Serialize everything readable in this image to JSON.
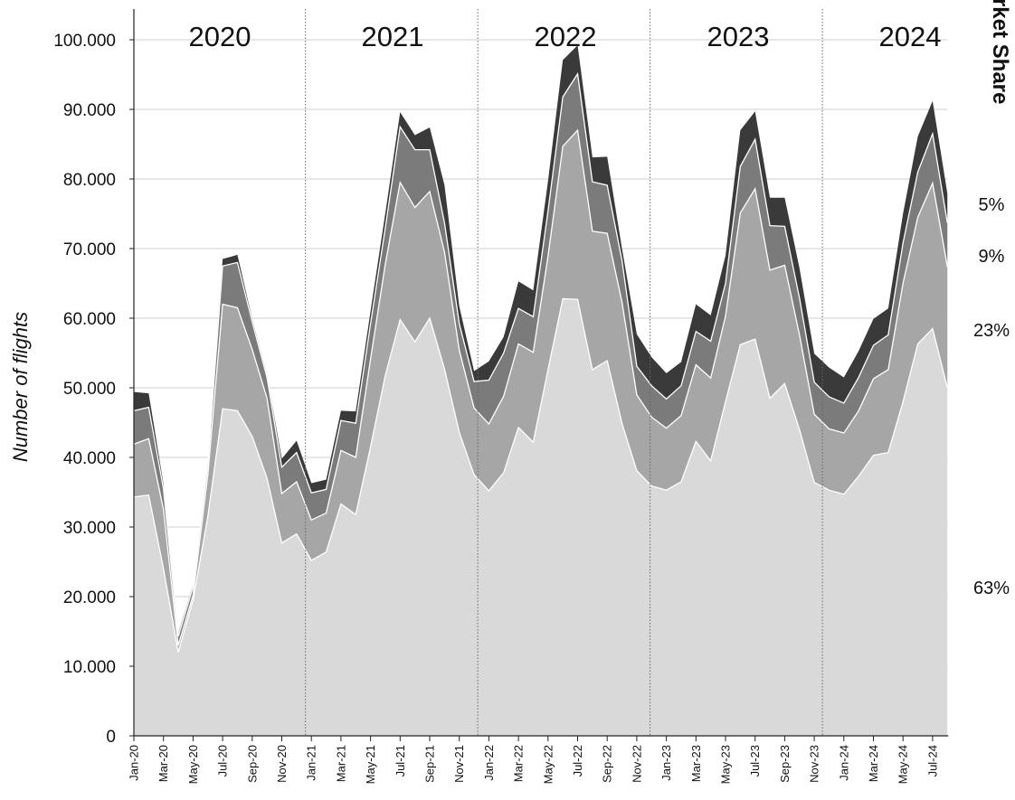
{
  "chart_data": {
    "type": "area",
    "stacked": true,
    "ylabel": "Number of flights",
    "ylim": [
      0,
      100000
    ],
    "y_ticks": [
      "0",
      "10.000",
      "20.000",
      "30.000",
      "40.000",
      "50.000",
      "60.000",
      "70.000",
      "80.000",
      "90.000",
      "100.000"
    ],
    "x": [
      "Jan-20",
      "Feb-20",
      "Mar-20",
      "Apr-20",
      "May-20",
      "Jun-20",
      "Jul-20",
      "Aug-20",
      "Sep-20",
      "Oct-20",
      "Nov-20",
      "Dec-20",
      "Jan-21",
      "Feb-21",
      "Mar-21",
      "Apr-21",
      "May-21",
      "Jun-21",
      "Jul-21",
      "Aug-21",
      "Sep-21",
      "Oct-21",
      "Nov-21",
      "Dec-21",
      "Jan-22",
      "Feb-22",
      "Mar-22",
      "Apr-22",
      "May-22",
      "Jun-22",
      "Jul-22",
      "Aug-22",
      "Sep-22",
      "Oct-22",
      "Nov-22",
      "Dec-22",
      "Jan-23",
      "Feb-23",
      "Mar-23",
      "Apr-23",
      "May-23",
      "Jun-23",
      "Jul-23",
      "Aug-23",
      "Sep-23",
      "Oct-23",
      "Nov-23",
      "Dec-23",
      "Jan-24",
      "Feb-24",
      "Mar-24",
      "Apr-24",
      "May-24",
      "Jun-24",
      "Jul-24",
      "Aug-24"
    ],
    "x_tick_labels": [
      "Jan-20",
      "Mar-20",
      "May-20",
      "Jul-20",
      "Sep-20",
      "Nov-20",
      "Jan-21",
      "Mar-21",
      "May-21",
      "Jul-21",
      "Sep-21",
      "Nov-21",
      "Jan-22",
      "Mar-22",
      "May-22",
      "Jul-22",
      "Sep-22",
      "Nov-22",
      "Jan-23",
      "Mar-23",
      "May-23",
      "Jul-23",
      "Sep-23",
      "Nov-23",
      "Jan-24",
      "Mar-24",
      "May-24",
      "Jul-24"
    ],
    "year_labels": [
      "2020",
      "2021",
      "2022",
      "2023",
      "2024"
    ],
    "series": [
      {
        "share_label": "63%",
        "color": "#d9d9d9",
        "values": [
          34300,
          34600,
          24000,
          12000,
          19500,
          31500,
          47000,
          46700,
          43000,
          37000,
          27700,
          29000,
          25200,
          26400,
          33300,
          31800,
          41500,
          51800,
          59800,
          56600,
          60000,
          52700,
          43600,
          37500,
          35200,
          37800,
          44300,
          42200,
          52600,
          62800,
          62700,
          52600,
          53900,
          44900,
          38100,
          35900,
          35300,
          36500,
          42300,
          39500,
          48000,
          56200,
          57000,
          48500,
          50600,
          44000,
          36400,
          35300,
          34700,
          37300,
          40300,
          40700,
          48000,
          56300,
          58500,
          50000
        ]
      },
      {
        "share_label": "23%",
        "color": "#a6a6a6",
        "values": [
          7600,
          8100,
          8500,
          1000,
          700,
          6000,
          15000,
          14800,
          12500,
          11500,
          7100,
          7500,
          5800,
          5600,
          7700,
          8200,
          12600,
          16000,
          19700,
          19300,
          18200,
          16800,
          11800,
          9600,
          9600,
          11000,
          12000,
          12900,
          16300,
          21900,
          24300,
          19900,
          18300,
          17400,
          10900,
          9900,
          8900,
          9500,
          11000,
          11900,
          12300,
          18900,
          21600,
          18400,
          17000,
          13600,
          9800,
          8800,
          8800,
          9400,
          11000,
          11900,
          17000,
          18200,
          20900,
          17400
        ]
      },
      {
        "share_label": "9%",
        "color": "#7b7b7b",
        "values": [
          4800,
          4500,
          3000,
          1300,
          1200,
          1600,
          5500,
          6500,
          4000,
          3000,
          3800,
          4200,
          3900,
          3400,
          4300,
          4900,
          5100,
          5200,
          8000,
          8300,
          6000,
          4200,
          3800,
          3800,
          6300,
          6200,
          5100,
          5100,
          6500,
          7100,
          8100,
          7100,
          6900,
          6000,
          4100,
          4500,
          4200,
          4300,
          4800,
          5300,
          4700,
          6700,
          7100,
          6400,
          5600,
          5300,
          4600,
          4600,
          4300,
          4800,
          4800,
          5000,
          5800,
          6500,
          7100,
          6300
        ]
      },
      {
        "share_label": "5%",
        "color": "#3a3a3a",
        "values": [
          2700,
          2000,
          700,
          400,
          300,
          500,
          1000,
          1100,
          400,
          300,
          1200,
          1700,
          1400,
          1400,
          1400,
          1700,
          1800,
          2100,
          2100,
          2100,
          3200,
          5400,
          2500,
          1500,
          2700,
          2300,
          3900,
          3800,
          4300,
          5300,
          4100,
          3500,
          4100,
          1700,
          4600,
          4100,
          3700,
          3400,
          3900,
          3700,
          4000,
          5200,
          4000,
          4000,
          4100,
          4300,
          4100,
          4200,
          3700,
          3800,
          3800,
          3800,
          4200,
          5100,
          4700,
          4200
        ]
      }
    ],
    "legend_title": "Market Share",
    "grid": "horizontal"
  }
}
